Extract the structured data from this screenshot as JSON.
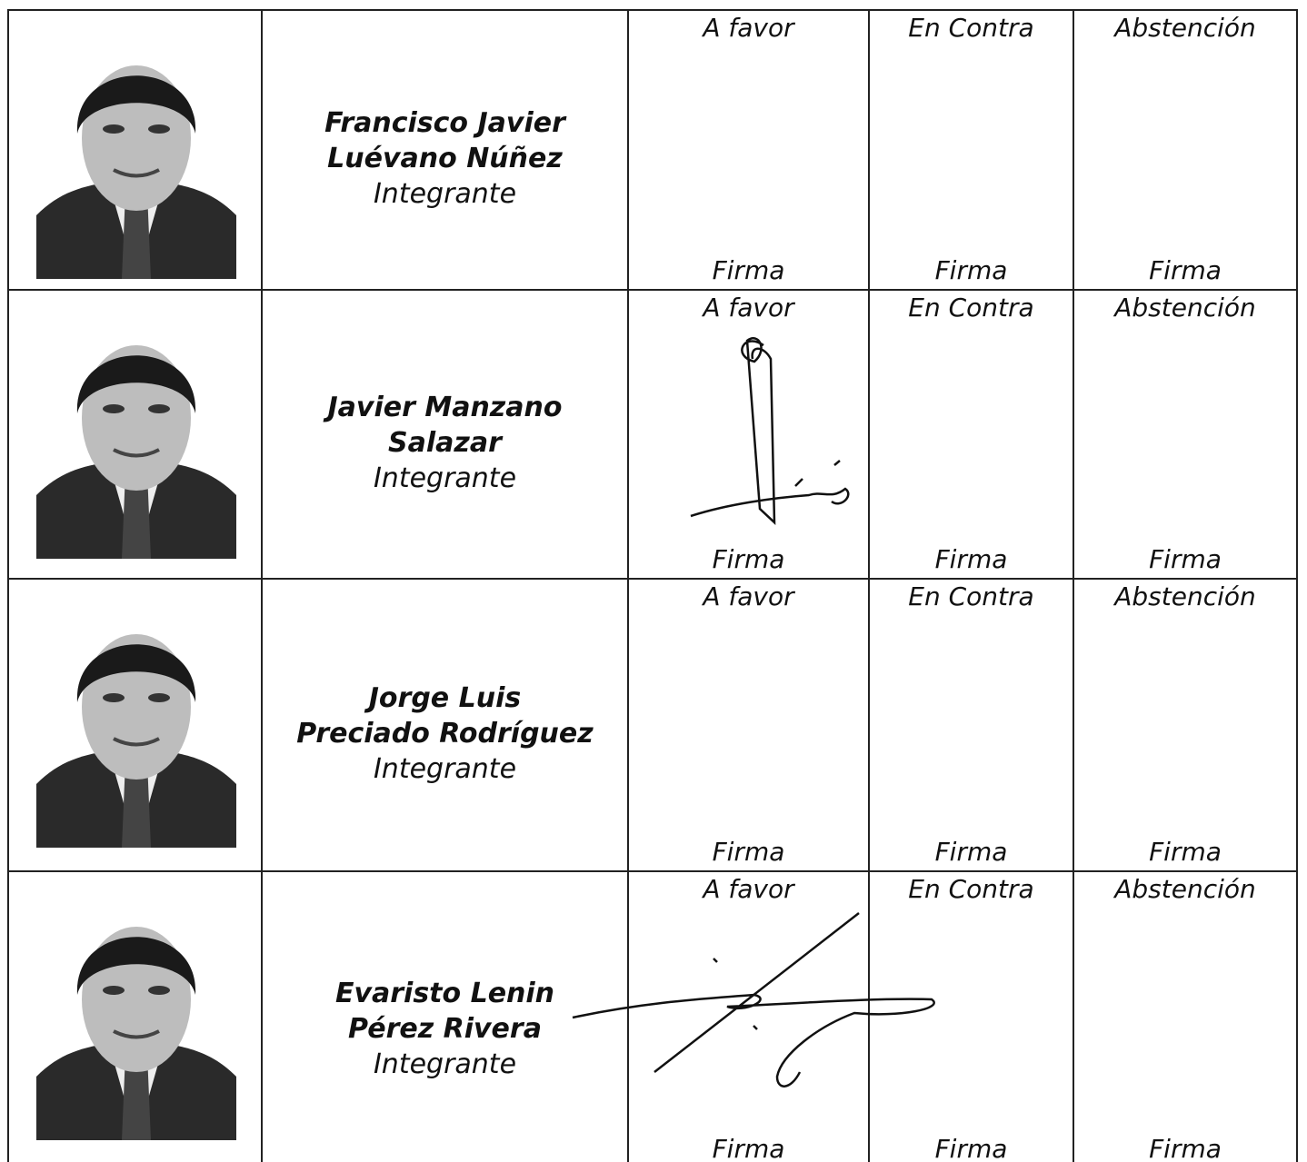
{
  "table": {
    "rows": [
      {
        "name": [
          "Francisco Javier",
          "Luévano Núñez"
        ],
        "role": "Integrante",
        "votes": [
          {
            "label": "A favor",
            "sign": "Firma"
          },
          {
            "label": "En Contra",
            "sign": "Firma"
          },
          {
            "label": "Abstención",
            "sign": "Firma"
          }
        ]
      },
      {
        "name": [
          "Javier Manzano",
          "Salazar"
        ],
        "role": "Integrante",
        "votes": [
          {
            "label": "A favor",
            "sign": "Firma"
          },
          {
            "label": "En Contra",
            "sign": "Firma"
          },
          {
            "label": "Abstención",
            "sign": "Firma"
          }
        ]
      },
      {
        "name": [
          "Jorge Luis",
          "Preciado Rodríguez"
        ],
        "role": "Integrante",
        "votes": [
          {
            "label": "A favor",
            "sign": "Firma"
          },
          {
            "label": "En Contra",
            "sign": "Firma"
          },
          {
            "label": "Abstención",
            "sign": "Firma"
          }
        ]
      },
      {
        "name": [
          "Evaristo Lenin",
          "Pérez Rivera"
        ],
        "role": "Integrante",
        "votes": [
          {
            "label": "A favor",
            "sign": "Firma"
          },
          {
            "label": "En Contra",
            "sign": "Firma"
          },
          {
            "label": "Abstención",
            "sign": "Firma"
          }
        ]
      }
    ]
  }
}
